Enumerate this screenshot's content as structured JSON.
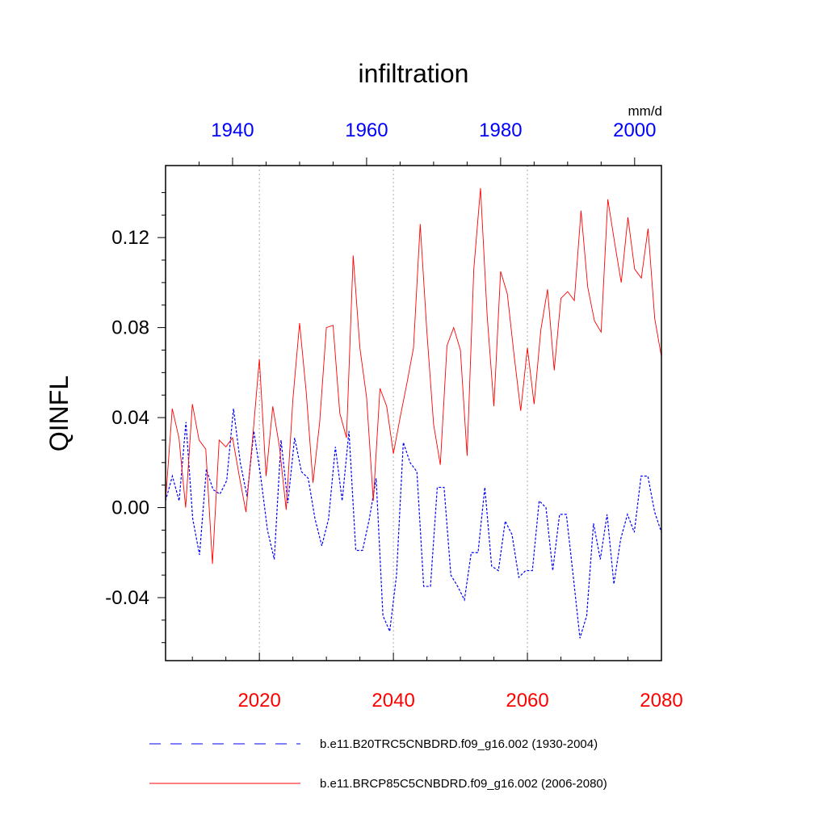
{
  "chart_data": {
    "type": "line",
    "title": "infiltration",
    "ylabel": "QINFL",
    "units": "mm/d",
    "ylim": [
      -0.068,
      0.152
    ],
    "y_ticks": [
      "-0.04",
      "0.00",
      "0.04",
      "0.08",
      "0.12"
    ],
    "y_tick_values": [
      -0.04,
      0.0,
      0.04,
      0.08,
      0.12
    ],
    "bottom_axis": {
      "range": [
        2006,
        2080
      ],
      "ticks": [
        "2020",
        "2040",
        "2060",
        "2080"
      ],
      "tick_values": [
        2020,
        2040,
        2060,
        2080
      ],
      "color": "#ff0000"
    },
    "top_axis": {
      "range": [
        1930,
        2004
      ],
      "ticks": [
        "1940",
        "1960",
        "1980",
        "2000"
      ],
      "tick_values": [
        1940,
        1960,
        1980,
        2000
      ],
      "color": "#0000ff"
    },
    "grid_x_values": [
      2020,
      2040,
      2060
    ],
    "series": [
      {
        "name": "b.e11.B20TRC5CNBDRD.f09_g16.002 (1930-2004)",
        "color": "#0000ff",
        "dash": "dashed",
        "x_start": 1930,
        "values": [
          0.003,
          0.014,
          0.003,
          0.038,
          -0.005,
          -0.021,
          0.017,
          0.008,
          0.006,
          0.012,
          0.044,
          0.02,
          0.005,
          0.034,
          0.014,
          -0.01,
          -0.023,
          0.03,
          0.002,
          0.031,
          0.016,
          0.013,
          -0.005,
          -0.017,
          -0.005,
          0.027,
          0.003,
          0.034,
          -0.019,
          -0.019,
          -0.005,
          0.013,
          -0.048,
          -0.055,
          -0.03,
          0.029,
          0.02,
          0.016,
          -0.035,
          -0.035,
          0.009,
          0.009,
          -0.03,
          -0.035,
          -0.041,
          -0.02,
          -0.02,
          0.009,
          -0.026,
          -0.028,
          -0.006,
          -0.012,
          -0.031,
          -0.028,
          -0.028,
          0.003,
          0.0,
          -0.028,
          -0.003,
          -0.003,
          -0.03,
          -0.058,
          -0.048,
          -0.007,
          -0.023,
          -0.003,
          -0.034,
          -0.014,
          -0.003,
          -0.011,
          0.014,
          0.014,
          -0.002,
          -0.011
        ]
      },
      {
        "name": "b.e11.BRCP85C5CNBDRD.f09_g16.002 (2006-2080)",
        "color": "#ff0000",
        "dash": "solid",
        "x_start": 2006,
        "values": [
          0.003,
          0.044,
          0.031,
          0.0,
          0.046,
          0.03,
          0.026,
          -0.025,
          0.03,
          0.027,
          0.031,
          0.014,
          -0.002,
          0.031,
          0.066,
          0.014,
          0.045,
          0.027,
          -0.001,
          0.048,
          0.082,
          0.051,
          0.011,
          0.038,
          0.08,
          0.081,
          0.042,
          0.031,
          0.112,
          0.071,
          0.049,
          0.003,
          0.053,
          0.045,
          0.024,
          0.04,
          0.055,
          0.071,
          0.126,
          0.078,
          0.037,
          0.019,
          0.072,
          0.08,
          0.07,
          0.023,
          0.106,
          0.142,
          0.085,
          0.045,
          0.105,
          0.095,
          0.068,
          0.043,
          0.071,
          0.046,
          0.079,
          0.097,
          0.061,
          0.093,
          0.096,
          0.092,
          0.132,
          0.098,
          0.083,
          0.078,
          0.137,
          0.118,
          0.1,
          0.129,
          0.106,
          0.102,
          0.124,
          0.084,
          0.067
        ]
      }
    ]
  }
}
